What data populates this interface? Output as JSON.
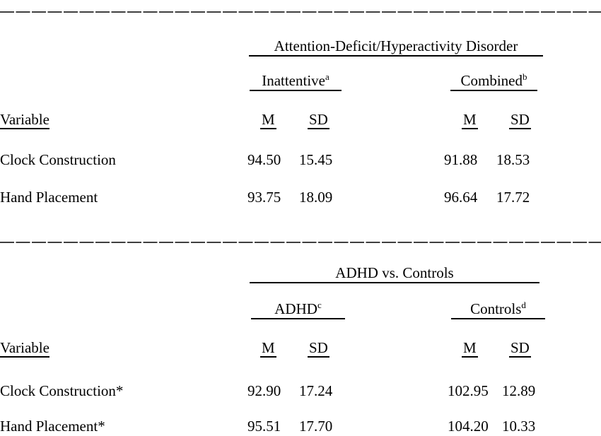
{
  "page": {
    "background": "#ffffff",
    "text_color": "#000000",
    "rule_color": "#3f3f3f"
  },
  "tables": [
    {
      "group_header": "Attention-Deficit/Hyperactivity Disorder",
      "subgroups": [
        {
          "label": "Inattentive",
          "superscript": "a"
        },
        {
          "label": "Combined",
          "superscript": "b"
        }
      ],
      "variable_header": "Variable",
      "stat_headers": [
        "M",
        "SD",
        "M",
        "SD"
      ],
      "rows": [
        {
          "variable": "Clock Construction",
          "values": [
            "94.50",
            "15.45",
            "91.88",
            "18.53"
          ]
        },
        {
          "variable": "Hand Placement",
          "values": [
            "93.75",
            "18.09",
            "96.64",
            "17.72"
          ]
        }
      ]
    },
    {
      "group_header": "ADHD vs. Controls",
      "subgroups": [
        {
          "label": "ADHD",
          "superscript": "c"
        },
        {
          "label": "Controls",
          "superscript": "d"
        }
      ],
      "variable_header": "Variable",
      "stat_headers": [
        "M",
        "SD",
        "M",
        "SD"
      ],
      "rows": [
        {
          "variable": "Clock Construction*",
          "values": [
            "92.90",
            "17.24",
            "102.95",
            "12.89"
          ]
        },
        {
          "variable": "Hand Placement*",
          "values": [
            "95.51",
            "17.70",
            "104.20",
            "10.33"
          ]
        }
      ]
    }
  ]
}
